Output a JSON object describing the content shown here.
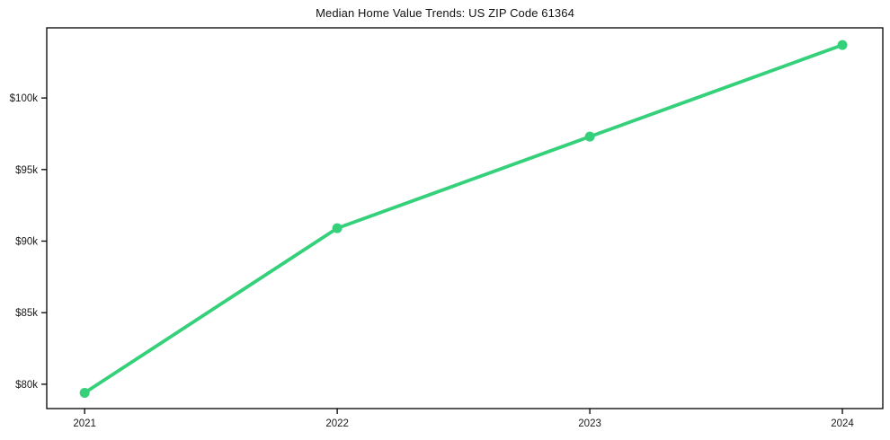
{
  "chart_data": {
    "type": "line",
    "title": "Median Home Value Trends: US ZIP Code 61364",
    "x": [
      2021,
      2022,
      2023,
      2024
    ],
    "x_tick_labels": [
      "2021",
      "2022",
      "2023",
      "2024"
    ],
    "series": [
      {
        "name": "Median Home Value",
        "values": [
          79400,
          90900,
          97300,
          103700
        ]
      }
    ],
    "y_ticks": [
      80000,
      85000,
      90000,
      95000,
      100000
    ],
    "y_tick_labels": [
      "$80k",
      "$85k",
      "$90k",
      "$95k",
      "$100k"
    ],
    "xlim": [
      2020.85,
      2024.16
    ],
    "ylim": [
      78300,
      104900
    ],
    "grid": false,
    "legend": "none",
    "line_color": "#34d07a",
    "marker": "circle",
    "axis_color": "#000000",
    "tick_label_color": "#1a1a1a"
  }
}
